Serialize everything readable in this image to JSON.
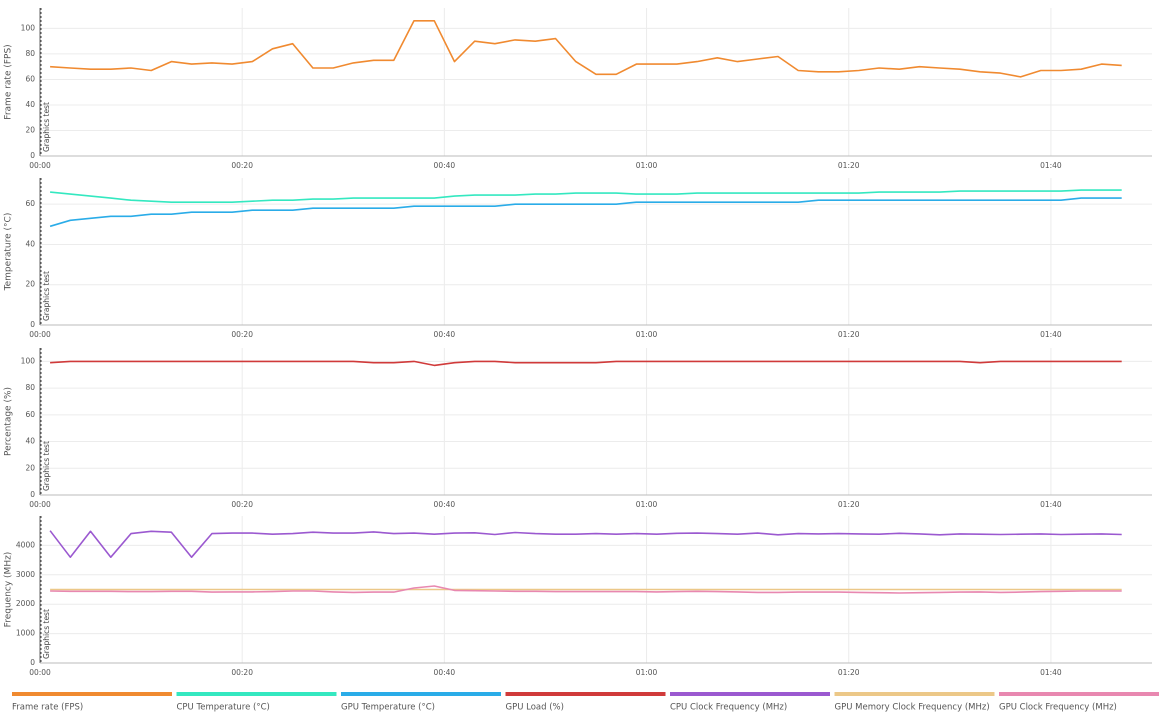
{
  "chart_data": [
    {
      "type": "line",
      "y_label": "Frame rate (FPS)",
      "annotation": "Graphics test",
      "grid": true,
      "xlim": [
        0,
        110
      ],
      "xticks": [
        {
          "value": 0,
          "label": "00:00"
        },
        {
          "value": 20,
          "label": "00:20"
        },
        {
          "value": 40,
          "label": "00:40"
        },
        {
          "value": 60,
          "label": "01:00"
        },
        {
          "value": 80,
          "label": "01:20"
        },
        {
          "value": 100,
          "label": "01:40"
        }
      ],
      "ylim": [
        0,
        116
      ],
      "yticks": [
        0,
        20,
        40,
        60,
        80,
        100
      ],
      "x": [
        1,
        3,
        5,
        7,
        9,
        11,
        13,
        15,
        17,
        19,
        21,
        23,
        25,
        27,
        29,
        31,
        33,
        35,
        37,
        39,
        41,
        43,
        45,
        47,
        49,
        51,
        53,
        55,
        57,
        59,
        61,
        63,
        65,
        67,
        69,
        71,
        73,
        75,
        77,
        79,
        81,
        83,
        85,
        87,
        89,
        91,
        93,
        95,
        97,
        99,
        101,
        103,
        105,
        107
      ],
      "series": [
        {
          "name": "Frame rate (FPS)",
          "color": "#f08a30",
          "values": [
            70,
            69,
            68,
            68,
            69,
            67,
            74,
            72,
            73,
            72,
            74,
            84,
            88,
            69,
            69,
            73,
            75,
            75,
            106,
            106,
            74,
            90,
            88,
            91,
            90,
            92,
            74,
            64,
            64,
            72,
            72,
            72,
            74,
            77,
            74,
            76,
            78,
            67,
            66,
            66,
            67,
            69,
            68,
            70,
            69,
            68,
            66,
            65,
            62,
            67,
            67,
            68,
            72,
            71
          ]
        }
      ]
    },
    {
      "type": "line",
      "y_label": "Temperature (°C)",
      "annotation": "Graphics test",
      "grid": true,
      "xlim": [
        0,
        110
      ],
      "xticks": [
        {
          "value": 0,
          "label": "00:00"
        },
        {
          "value": 20,
          "label": "00:20"
        },
        {
          "value": 40,
          "label": "00:40"
        },
        {
          "value": 60,
          "label": "01:00"
        },
        {
          "value": 80,
          "label": "01:20"
        },
        {
          "value": 100,
          "label": "01:40"
        }
      ],
      "ylim": [
        0,
        73
      ],
      "yticks": [
        0,
        20,
        40,
        60
      ],
      "x": [
        1,
        3,
        5,
        7,
        9,
        11,
        13,
        15,
        17,
        19,
        21,
        23,
        25,
        27,
        29,
        31,
        33,
        35,
        37,
        39,
        41,
        43,
        45,
        47,
        49,
        51,
        53,
        55,
        57,
        59,
        61,
        63,
        65,
        67,
        69,
        71,
        73,
        75,
        77,
        79,
        81,
        83,
        85,
        87,
        89,
        91,
        93,
        95,
        97,
        99,
        101,
        103,
        105,
        107
      ],
      "series": [
        {
          "name": "CPU Temperature (°C)",
          "color": "#34e8c0",
          "values": [
            66,
            65,
            64,
            63,
            62,
            61.5,
            61,
            61,
            61,
            61,
            61.5,
            62,
            62,
            62.5,
            62.5,
            63,
            63,
            63,
            63,
            63,
            64,
            64.5,
            64.5,
            64.5,
            65,
            65,
            65.5,
            65.5,
            65.5,
            65,
            65,
            65,
            65.5,
            65.5,
            65.5,
            65.5,
            65.5,
            65.5,
            65.5,
            65.5,
            65.5,
            66,
            66,
            66,
            66,
            66.5,
            66.5,
            66.5,
            66.5,
            66.5,
            66.5,
            67,
            67,
            67
          ]
        },
        {
          "name": "GPU Temperature (°C)",
          "color": "#2aace8",
          "values": [
            49,
            52,
            53,
            54,
            54,
            55,
            55,
            56,
            56,
            56,
            57,
            57,
            57,
            58,
            58,
            58,
            58,
            58,
            59,
            59,
            59,
            59,
            59,
            60,
            60,
            60,
            60,
            60,
            60,
            61,
            61,
            61,
            61,
            61,
            61,
            61,
            61,
            61,
            62,
            62,
            62,
            62,
            62,
            62,
            62,
            62,
            62,
            62,
            62,
            62,
            62,
            63,
            63,
            63
          ]
        }
      ]
    },
    {
      "type": "line",
      "y_label": "Percentage (%)",
      "annotation": "Graphics test",
      "grid": true,
      "xlim": [
        0,
        110
      ],
      "xticks": [
        {
          "value": 0,
          "label": "00:00"
        },
        {
          "value": 20,
          "label": "00:20"
        },
        {
          "value": 40,
          "label": "00:40"
        },
        {
          "value": 60,
          "label": "01:00"
        },
        {
          "value": 80,
          "label": "01:20"
        },
        {
          "value": 100,
          "label": "01:40"
        }
      ],
      "ylim": [
        0,
        110
      ],
      "yticks": [
        0,
        20,
        40,
        60,
        80,
        100
      ],
      "x": [
        1,
        3,
        5,
        7,
        9,
        11,
        13,
        15,
        17,
        19,
        21,
        23,
        25,
        27,
        29,
        31,
        33,
        35,
        37,
        39,
        41,
        43,
        45,
        47,
        49,
        51,
        53,
        55,
        57,
        59,
        61,
        63,
        65,
        67,
        69,
        71,
        73,
        75,
        77,
        79,
        81,
        83,
        85,
        87,
        89,
        91,
        93,
        95,
        97,
        99,
        101,
        103,
        105,
        107
      ],
      "series": [
        {
          "name": "GPU Load (%)",
          "color": "#d03a3a",
          "values": [
            99,
            100,
            100,
            100,
            100,
            100,
            100,
            100,
            100,
            100,
            100,
            100,
            100,
            100,
            100,
            100,
            99,
            99,
            100,
            97,
            99,
            100,
            100,
            99,
            99,
            99,
            99,
            99,
            100,
            100,
            100,
            100,
            100,
            100,
            100,
            100,
            100,
            100,
            100,
            100,
            100,
            100,
            100,
            100,
            100,
            100,
            99,
            100,
            100,
            100,
            100,
            100,
            100,
            100
          ]
        }
      ]
    },
    {
      "type": "line",
      "y_label": "Frequency (MHz)",
      "annotation": "Graphics test",
      "grid": true,
      "xlim": [
        0,
        110
      ],
      "xticks": [
        {
          "value": 0,
          "label": "00:00"
        },
        {
          "value": 20,
          "label": "00:20"
        },
        {
          "value": 40,
          "label": "00:40"
        },
        {
          "value": 60,
          "label": "01:00"
        },
        {
          "value": 80,
          "label": "01:20"
        },
        {
          "value": 100,
          "label": "01:40"
        }
      ],
      "ylim": [
        0,
        5000
      ],
      "yticks": [
        0,
        1000,
        2000,
        3000,
        4000
      ],
      "x": [
        1,
        3,
        5,
        7,
        9,
        11,
        13,
        15,
        17,
        19,
        21,
        23,
        25,
        27,
        29,
        31,
        33,
        35,
        37,
        39,
        41,
        43,
        45,
        47,
        49,
        51,
        53,
        55,
        57,
        59,
        61,
        63,
        65,
        67,
        69,
        71,
        73,
        75,
        77,
        79,
        81,
        83,
        85,
        87,
        89,
        91,
        93,
        95,
        97,
        99,
        101,
        103,
        105,
        107
      ],
      "series": [
        {
          "name": "CPU Clock Frequency (MHz)",
          "color": "#9b59d0",
          "values": [
            4500,
            3600,
            4480,
            3600,
            4400,
            4480,
            4450,
            3600,
            4400,
            4420,
            4420,
            4380,
            4400,
            4450,
            4420,
            4420,
            4460,
            4400,
            4420,
            4380,
            4420,
            4430,
            4370,
            4440,
            4400,
            4380,
            4380,
            4400,
            4380,
            4400,
            4380,
            4410,
            4420,
            4400,
            4380,
            4420,
            4360,
            4400,
            4390,
            4400,
            4390,
            4380,
            4410,
            4390,
            4360,
            4390,
            4380,
            4370,
            4380,
            4390,
            4370,
            4380,
            4390,
            4370
          ]
        },
        {
          "name": "GPU Memory Clock Frequency (MHz)",
          "color": "#ecc888",
          "values": [
            2500,
            2500,
            2500,
            2500,
            2500,
            2500,
            2500,
            2500,
            2500,
            2500,
            2500,
            2500,
            2500,
            2500,
            2500,
            2500,
            2500,
            2500,
            2500,
            2500,
            2500,
            2500,
            2500,
            2500,
            2500,
            2500,
            2500,
            2500,
            2500,
            2500,
            2500,
            2500,
            2500,
            2500,
            2500,
            2500,
            2500,
            2500,
            2500,
            2500,
            2500,
            2500,
            2500,
            2500,
            2500,
            2500,
            2500,
            2500,
            2500,
            2500,
            2500,
            2500,
            2500,
            2500
          ]
        },
        {
          "name": "GPU Clock Frequency (MHz)",
          "color": "#e888b0",
          "values": [
            2450,
            2440,
            2440,
            2440,
            2430,
            2430,
            2440,
            2440,
            2410,
            2420,
            2420,
            2430,
            2450,
            2450,
            2420,
            2400,
            2410,
            2410,
            2550,
            2620,
            2470,
            2460,
            2450,
            2440,
            2440,
            2430,
            2430,
            2430,
            2430,
            2430,
            2420,
            2430,
            2440,
            2430,
            2420,
            2400,
            2400,
            2410,
            2410,
            2410,
            2400,
            2390,
            2380,
            2390,
            2400,
            2410,
            2420,
            2400,
            2410,
            2430,
            2440,
            2450,
            2450,
            2450
          ]
        }
      ]
    }
  ]
}
